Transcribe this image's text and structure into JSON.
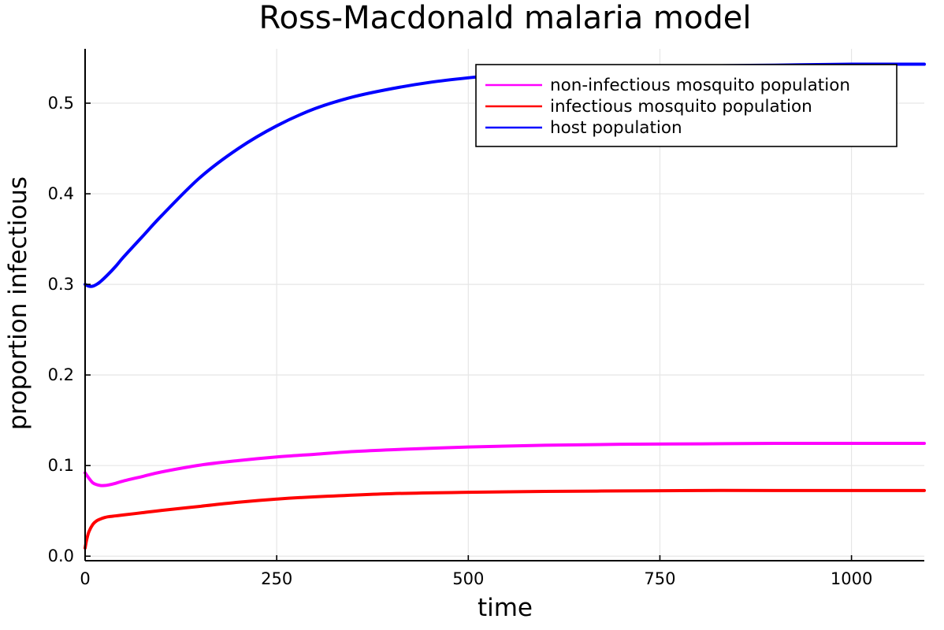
{
  "chart_data": {
    "type": "line",
    "title": "Ross-Macdonald malaria model",
    "xlabel": "time",
    "ylabel": "proportion infectious",
    "xlim": [
      0,
      1095
    ],
    "ylim": [
      -0.005,
      0.56
    ],
    "xticks": [
      0,
      250,
      500,
      750,
      1000
    ],
    "xtick_labels": [
      "0",
      "250",
      "500",
      "750",
      "1000"
    ],
    "yticks": [
      0.0,
      0.1,
      0.2,
      0.3,
      0.4,
      0.5
    ],
    "ytick_labels": [
      "0.0",
      "0.1",
      "0.2",
      "0.3",
      "0.4",
      "0.5"
    ],
    "grid": true,
    "legend_position": "top-right",
    "series": [
      {
        "name": "non-infectious mosquito population",
        "color": "#ff00ff",
        "x": [
          0,
          5,
          10,
          15,
          20,
          25,
          30,
          40,
          50,
          75,
          100,
          150,
          200,
          250,
          300,
          350,
          400,
          500,
          600,
          700,
          800,
          900,
          1000,
          1095
        ],
        "y": [
          0.092,
          0.086,
          0.081,
          0.079,
          0.078,
          0.078,
          0.0785,
          0.0805,
          0.083,
          0.088,
          0.093,
          0.1005,
          0.1055,
          0.1095,
          0.1125,
          0.1155,
          0.1175,
          0.1205,
          0.1225,
          0.1235,
          0.124,
          0.1245,
          0.1245,
          0.1245
        ]
      },
      {
        "name": "infectious mosquito population",
        "color": "#ff0000",
        "x": [
          0,
          2,
          5,
          10,
          15,
          20,
          25,
          30,
          40,
          50,
          75,
          100,
          150,
          200,
          250,
          300,
          400,
          500,
          600,
          700,
          800,
          900,
          1000,
          1095
        ],
        "y": [
          0.009,
          0.018,
          0.027,
          0.035,
          0.039,
          0.041,
          0.0425,
          0.0435,
          0.0445,
          0.0455,
          0.048,
          0.0505,
          0.055,
          0.0595,
          0.063,
          0.0655,
          0.069,
          0.0705,
          0.0715,
          0.072,
          0.0725,
          0.0725,
          0.0725,
          0.0725
        ]
      },
      {
        "name": "host population",
        "color": "#0000ff",
        "x": [
          0,
          5,
          10,
          15,
          20,
          30,
          40,
          50,
          75,
          100,
          150,
          200,
          250,
          300,
          350,
          400,
          450,
          500,
          550,
          600,
          700,
          800,
          900,
          1000,
          1095
        ],
        "y": [
          0.3,
          0.298,
          0.298,
          0.3,
          0.303,
          0.311,
          0.32,
          0.33,
          0.353,
          0.376,
          0.418,
          0.45,
          0.475,
          0.494,
          0.507,
          0.516,
          0.523,
          0.528,
          0.532,
          0.535,
          0.539,
          0.541,
          0.542,
          0.543,
          0.543
        ]
      }
    ]
  }
}
